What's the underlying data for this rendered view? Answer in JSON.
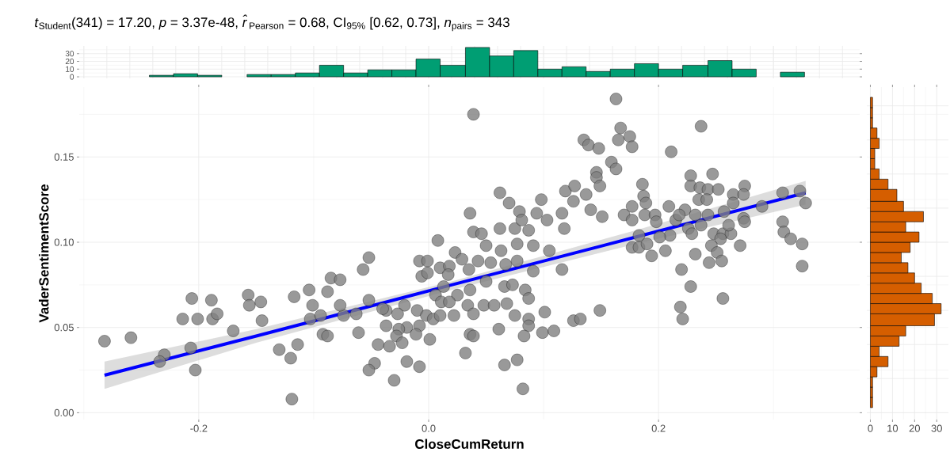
{
  "chart_data": [
    {
      "type": "histogram",
      "color": "#009e73",
      "bins": [
        -0.243,
        -0.222,
        -0.201,
        -0.18,
        -0.158,
        -0.137,
        -0.116,
        -0.095,
        -0.074,
        -0.053,
        -0.032,
        -0.011,
        0.01,
        0.032,
        0.053,
        0.074,
        0.095,
        0.116,
        0.137,
        0.158,
        0.179,
        0.2,
        0.221,
        0.243,
        0.264,
        0.285,
        0.306,
        0.327
      ],
      "values": [
        2,
        4,
        2,
        0,
        3,
        3,
        5,
        15,
        5,
        9,
        9,
        23,
        15,
        38,
        27,
        34,
        10,
        13,
        7,
        10,
        17,
        10,
        15,
        21,
        10,
        0,
        6
      ],
      "xlim": [
        -0.304,
        0.375
      ],
      "ylim": [
        -2,
        40
      ],
      "xticks": [
        {
          "value": -0.3,
          "label": null
        },
        {
          "value": -0.2,
          "label": null
        },
        {
          "value": -0.1,
          "label": null
        },
        {
          "value": 0,
          "label": null
        },
        {
          "value": 0.1,
          "label": null
        },
        {
          "value": 0.2,
          "label": null
        },
        {
          "value": 0.3,
          "label": null
        }
      ],
      "yticks": [
        0,
        10,
        20,
        30,
        {
          "value": 5,
          "label": null
        },
        {
          "value": 15,
          "label": null
        },
        {
          "value": 25,
          "label": null
        },
        {
          "value": 35,
          "label": null
        }
      ],
      "grid": true,
      "tick_labels": "y"
    },
    {
      "type": "scatter",
      "title": "*t*$_{Student}$(341) = 17.20, *p* = 3.37e-48, *r̂*$_{Pearson}$ = 0.68, CI$_{95%}$ [0.62, 0.73], *n*$_{pairs}$ = 343",
      "xlabel": "CloseCumReturn",
      "ylabel": "VaderSentimentScore",
      "series": [
        {
          "type": "scatter",
          "color": "#808080",
          "marker": "circle",
          "x": [
            -0.282,
            -0.259,
            -0.206,
            -0.189,
            -0.214,
            -0.201,
            -0.188,
            -0.184,
            -0.157,
            -0.156,
            -0.146,
            -0.145,
            -0.17,
            -0.23,
            -0.234,
            -0.207,
            -0.203,
            -0.13,
            -0.114,
            -0.12,
            -0.119,
            -0.117,
            -0.104,
            -0.101,
            -0.085,
            -0.088,
            -0.092,
            -0.088,
            -0.103,
            -0.094,
            0.039,
            0.135,
            0.139,
            0.062,
            0.07,
            0.036,
            0.039,
            0.046,
            0.008,
            -0.052,
            -0.057,
            -0.077,
            0.023,
            0.05,
            0.063,
            0.062,
            0.075,
            0.079,
            0.081,
            0.087,
            0.077,
            0.094,
            0.098,
            0.103,
            0.116,
            0.118,
            0.091,
            0.105,
            0.116,
            0.119,
            0.127,
            0.126,
            0.137,
            0.141,
            -0.008,
            -0.001,
            -0.006,
            -0.001,
            0.01,
            0.018,
            0.017,
            0.029,
            0.035,
            0.043,
            0.054,
            0.067,
            0.077,
            0.091,
            0.013,
            0.025,
            0.036,
            0.05,
            0.066,
            0.073,
            0.084,
            0.087,
            0.006,
            0.011,
            0.018,
            -0.01,
            -0.002,
            0.004,
            0.01,
            0.022,
            0.034,
            0.039,
            0.048,
            0.057,
            0.068,
            0.075,
            0.087,
            0.087,
            0.083,
            0.101,
            0.061,
            0.036,
            0.039,
            0.032,
            0.066,
            0.077,
            0.082,
            0.099,
            0.109,
            0.126,
            0.132,
            0.001,
            -0.008,
            -0.021,
            -0.019,
            -0.026,
            -0.028,
            -0.023,
            -0.011,
            -0.037,
            -0.037,
            -0.027,
            -0.052,
            -0.04,
            -0.061,
            -0.044,
            -0.034,
            -0.047,
            -0.052,
            -0.019,
            -0.008,
            -0.03,
            -0.074,
            -0.077,
            -0.063,
            0.163,
            0.167,
            0.165,
            0.175,
            0.177,
            0.148,
            0.237,
            0.211,
            0.159,
            0.163,
            0.146,
            0.146,
            0.149,
            0.151,
            0.186,
            0.187,
            0.189,
            0.177,
            0.17,
            0.177,
            0.188,
            0.197,
            0.198,
            0.228,
            0.247,
            0.275,
            0.228,
            0.236,
            0.243,
            0.252,
            0.235,
            0.242,
            0.265,
            0.274,
            0.209,
            0.223,
            0.232,
            0.243,
            0.257,
            0.265,
            0.29,
            0.308,
            0.323,
            0.328,
            0.215,
            0.218,
            0.226,
            0.229,
            0.237,
            0.21,
            0.201,
            0.183,
            0.177,
            0.183,
            0.19,
            0.194,
            0.206,
            0.248,
            0.256,
            0.263,
            0.254,
            0.261,
            0.274,
            0.275,
            0.246,
            0.271,
            0.251,
            0.232,
            0.244,
            0.255,
            0.308,
            0.309,
            0.315,
            0.325,
            0.325,
            0.22,
            0.228,
            0.256,
            0.219,
            0.221,
            0.149
          ],
          "values": [
            0.042,
            0.044,
            0.067,
            0.066,
            0.055,
            0.055,
            0.055,
            0.058,
            0.069,
            0.063,
            0.065,
            0.054,
            0.048,
            0.034,
            0.03,
            0.038,
            0.025,
            0.037,
            0.04,
            0.032,
            0.008,
            0.068,
            0.072,
            0.063,
            0.079,
            0.071,
            0.046,
            0.045,
            0.055,
            0.057,
            0.175,
            0.16,
            0.157,
            0.129,
            0.123,
            0.117,
            0.106,
            0.105,
            0.101,
            0.091,
            0.084,
            0.078,
            0.094,
            0.098,
            0.095,
            0.108,
            0.108,
            0.118,
            0.113,
            0.107,
            0.099,
            0.117,
            0.125,
            0.113,
            0.117,
            0.108,
            0.098,
            0.095,
            0.084,
            0.13,
            0.133,
            0.124,
            0.128,
            0.119,
            0.089,
            0.089,
            0.08,
            0.082,
            0.085,
            0.086,
            0.081,
            0.09,
            0.084,
            0.089,
            0.088,
            0.087,
            0.089,
            0.083,
            0.074,
            0.069,
            0.072,
            0.077,
            0.074,
            0.075,
            0.072,
            0.067,
            0.069,
            0.065,
            0.065,
            0.06,
            0.057,
            0.055,
            0.057,
            0.057,
            0.063,
            0.058,
            0.063,
            0.063,
            0.064,
            0.057,
            0.055,
            0.051,
            0.045,
            0.059,
            0.049,
            0.046,
            0.045,
            0.035,
            0.028,
            0.031,
            0.014,
            0.047,
            0.048,
            0.054,
            0.055,
            0.043,
            0.051,
            0.063,
            0.05,
            0.049,
            0.045,
            0.041,
            0.046,
            0.051,
            0.06,
            0.058,
            0.066,
            0.061,
            0.047,
            0.04,
            0.039,
            0.029,
            0.025,
            0.03,
            0.027,
            0.019,
            0.057,
            0.063,
            0.058,
            0.184,
            0.167,
            0.16,
            0.162,
            0.156,
            0.155,
            0.168,
            0.153,
            0.147,
            0.143,
            0.141,
            0.138,
            0.133,
            0.115,
            0.134,
            0.127,
            0.123,
            0.121,
            0.116,
            0.113,
            0.116,
            0.116,
            0.112,
            0.139,
            0.14,
            0.133,
            0.133,
            0.132,
            0.131,
            0.131,
            0.125,
            0.125,
            0.128,
            0.128,
            0.121,
            0.119,
            0.116,
            0.116,
            0.118,
            0.123,
            0.121,
            0.129,
            0.13,
            0.123,
            0.113,
            0.116,
            0.108,
            0.105,
            0.11,
            0.104,
            0.103,
            0.104,
            0.097,
            0.097,
            0.099,
            0.092,
            0.095,
            0.105,
            0.105,
            0.105,
            0.102,
            0.11,
            0.114,
            0.112,
            0.098,
            0.098,
            0.094,
            0.093,
            0.088,
            0.089,
            0.112,
            0.106,
            0.102,
            0.099,
            0.086,
            0.084,
            0.074,
            0.067,
            0.062,
            0.055,
            0.06
          ]
        },
        {
          "type": "line",
          "color": "#0000ff",
          "marker": "none",
          "x": [
            -0.282,
            -0.15,
            0.02,
            0.18,
            0.328
          ],
          "values": [
            0.022,
            0.045,
            0.075,
            0.103,
            0.129
          ],
          "lower": [
            0.014,
            0.041,
            0.072,
            0.099,
            0.122
          ],
          "upper": [
            0.03,
            0.049,
            0.077,
            0.107,
            0.136
          ]
        }
      ],
      "xlim": [
        -0.304,
        0.375
      ],
      "ylim": [
        -0.004,
        0.191
      ],
      "xticks": [
        {
          "value": -0.3,
          "label": null
        },
        {
          "value": -0.2,
          "label": "-0.2"
        },
        {
          "value": -0.1,
          "label": null
        },
        {
          "value": 0,
          "label": "0.0"
        },
        {
          "value": 0.1,
          "label": null
        },
        {
          "value": 0.2,
          "label": "0.2"
        },
        {
          "value": 0.3,
          "label": null
        }
      ],
      "yticks": [
        {
          "value": 0,
          "label": "0.00"
        },
        {
          "value": 0.05,
          "label": "0.05"
        },
        {
          "value": 0.1,
          "label": "0.10"
        },
        {
          "value": 0.15,
          "label": "0.15"
        },
        {
          "value": 0.025,
          "label": null
        },
        {
          "value": 0.075,
          "label": null
        },
        {
          "value": 0.125,
          "label": null
        },
        {
          "value": 0.175,
          "label": null
        }
      ],
      "grid": true
    },
    {
      "type": "histogram",
      "orientation": "horizontal",
      "color": "#d55e00",
      "bins": [
        0.003,
        0.009,
        0.015,
        0.021,
        0.027,
        0.033,
        0.039,
        0.045,
        0.051,
        0.058,
        0.064,
        0.07,
        0.076,
        0.082,
        0.088,
        0.094,
        0.1,
        0.106,
        0.112,
        0.118,
        0.124,
        0.131,
        0.137,
        0.143,
        0.149,
        0.155,
        0.161,
        0.167,
        0.173,
        0.179,
        0.185
      ],
      "values": [
        1,
        1,
        1,
        3,
        8,
        4,
        13,
        16,
        29,
        32,
        28,
        23,
        20,
        17,
        14,
        18,
        22,
        16,
        24,
        15,
        12,
        8,
        4,
        2,
        2,
        4,
        3,
        1,
        1,
        1
      ],
      "xlim": [
        -1.6,
        35.3
      ],
      "ylim": [
        -0.004,
        0.191
      ],
      "xticks": [
        0,
        10,
        20,
        30,
        {
          "value": 5,
          "label": null
        },
        {
          "value": 15,
          "label": null
        },
        {
          "value": 25,
          "label": null
        }
      ],
      "yticks": [
        {
          "value": 0,
          "label": null
        },
        {
          "value": 0.05,
          "label": null
        },
        {
          "value": 0.1,
          "label": null
        },
        {
          "value": 0.15,
          "label": null
        },
        {
          "value": 0.025,
          "label": null
        },
        {
          "value": 0.075,
          "label": null
        },
        {
          "value": 0.125,
          "label": null
        },
        {
          "value": 0.175,
          "label": null
        }
      ],
      "grid": true,
      "tick_labels": "x"
    }
  ]
}
